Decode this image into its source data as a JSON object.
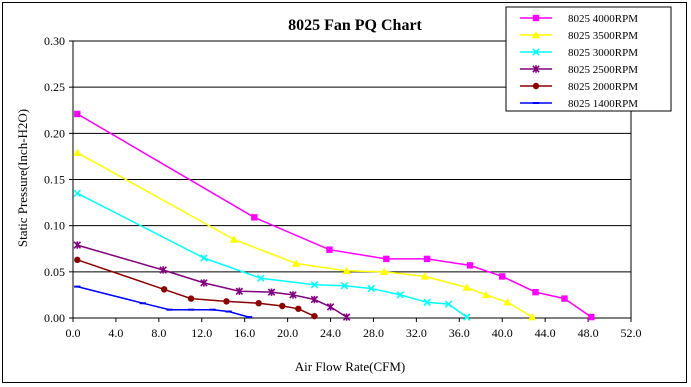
{
  "chart_data": {
    "type": "line",
    "title": "8025  Fan PQ Chart",
    "xlabel": "Air Flow Rate(CFM)",
    "ylabel": "Static Pressure(Inch-H2O)",
    "xlim": [
      0,
      52
    ],
    "ylim": [
      0,
      0.3
    ],
    "x_ticks": [
      0,
      4,
      8,
      12,
      16,
      20,
      24,
      28,
      32,
      36,
      40,
      44,
      48,
      52
    ],
    "x_tick_labels": [
      "0.0",
      "4.0",
      "8.0",
      "12.0",
      "16.0",
      "20.0",
      "24.0",
      "28.0",
      "32.0",
      "36.0",
      "40.0",
      "44.0",
      "48.0",
      "52.0"
    ],
    "y_ticks": [
      0,
      0.05,
      0.1,
      0.15,
      0.2,
      0.25,
      0.3
    ],
    "y_tick_labels": [
      "0.00",
      "0.05",
      "0.10",
      "0.15",
      "0.20",
      "0.25",
      "0.30"
    ],
    "grid": "horizontal",
    "legend_position": "top-right",
    "series": [
      {
        "name": "8025  4000RPM",
        "color": "#FF00FF",
        "marker": "square",
        "points": [
          [
            0.4,
            0.221
          ],
          [
            16.9,
            0.109
          ],
          [
            23.9,
            0.074
          ],
          [
            29.2,
            0.064
          ],
          [
            33.0,
            0.064
          ],
          [
            37.0,
            0.057
          ],
          [
            40.0,
            0.045
          ],
          [
            43.1,
            0.028
          ],
          [
            45.8,
            0.021
          ],
          [
            48.3,
            0.001
          ]
        ]
      },
      {
        "name": "8025   3500RPM",
        "color": "#FFFF00",
        "marker": "triangle",
        "points": [
          [
            0.4,
            0.179
          ],
          [
            15.0,
            0.085
          ],
          [
            20.8,
            0.059
          ],
          [
            25.5,
            0.051
          ],
          [
            29.0,
            0.05
          ],
          [
            32.8,
            0.045
          ],
          [
            36.7,
            0.033
          ],
          [
            38.5,
            0.025
          ],
          [
            40.5,
            0.017
          ],
          [
            42.8,
            0.001
          ]
        ]
      },
      {
        "name": "8025  3000RPM",
        "color": "#00FFFF",
        "marker": "x",
        "points": [
          [
            0.4,
            0.135
          ],
          [
            12.2,
            0.065
          ],
          [
            17.5,
            0.043
          ],
          [
            22.5,
            0.036
          ],
          [
            25.3,
            0.035
          ],
          [
            27.8,
            0.032
          ],
          [
            30.5,
            0.025
          ],
          [
            33.0,
            0.017
          ],
          [
            35.0,
            0.015
          ],
          [
            36.7,
            0.001
          ]
        ]
      },
      {
        "name": "8025  2500RPM",
        "color": "#800080",
        "marker": "star",
        "points": [
          [
            0.4,
            0.079
          ],
          [
            8.4,
            0.052
          ],
          [
            12.2,
            0.038
          ],
          [
            15.5,
            0.029
          ],
          [
            18.5,
            0.028
          ],
          [
            20.5,
            0.025
          ],
          [
            22.5,
            0.02
          ],
          [
            24.0,
            0.012
          ],
          [
            25.5,
            0.001
          ]
        ]
      },
      {
        "name": "8025  2000RPM",
        "color": "#8B0000",
        "marker": "circle",
        "points": [
          [
            0.4,
            0.063
          ],
          [
            8.5,
            0.031
          ],
          [
            11.0,
            0.021
          ],
          [
            14.3,
            0.018
          ],
          [
            17.3,
            0.016
          ],
          [
            19.5,
            0.013
          ],
          [
            21.0,
            0.01
          ],
          [
            22.5,
            0.002
          ]
        ]
      },
      {
        "name": "8025  1400RPM",
        "color": "#0000FF",
        "marker": "dash",
        "points": [
          [
            0.4,
            0.034
          ],
          [
            6.5,
            0.016
          ],
          [
            9.0,
            0.009
          ],
          [
            11.0,
            0.009
          ],
          [
            13.0,
            0.009
          ],
          [
            14.5,
            0.007
          ],
          [
            16.4,
            0.001
          ]
        ]
      }
    ]
  }
}
